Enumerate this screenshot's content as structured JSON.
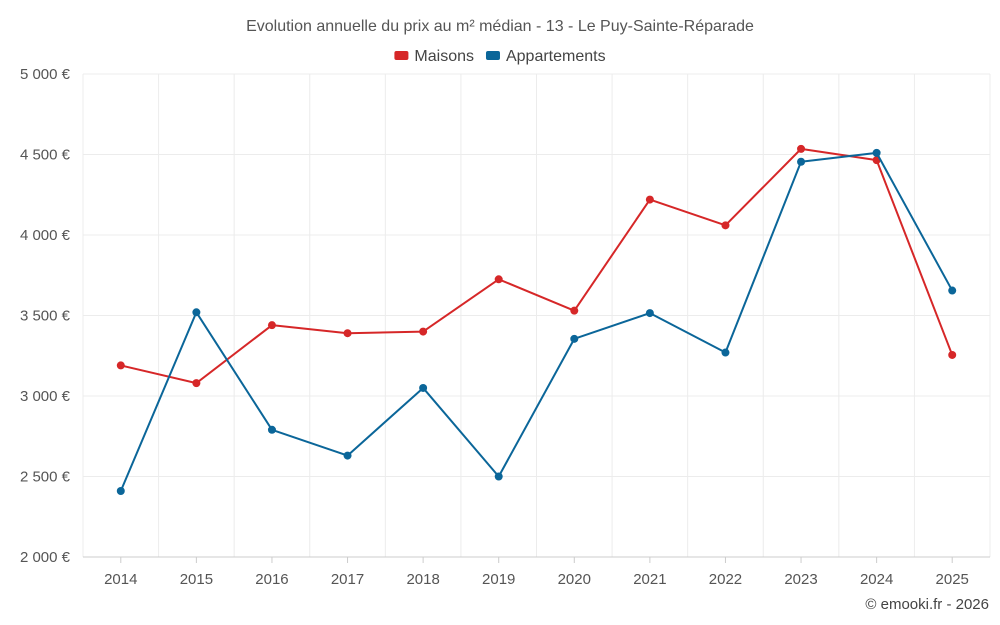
{
  "chart_data": {
    "type": "line",
    "title": "Evolution annuelle du prix au m² médian - 13 - Le Puy-Sainte-Réparade",
    "categories": [
      "2014",
      "2015",
      "2016",
      "2017",
      "2018",
      "2019",
      "2020",
      "2021",
      "2022",
      "2023",
      "2024",
      "2025"
    ],
    "series": [
      {
        "name": "Maisons",
        "color": "#d62728",
        "values": [
          3190,
          3080,
          3440,
          3390,
          3400,
          3725,
          3530,
          4220,
          4060,
          4535,
          4465,
          3255
        ]
      },
      {
        "name": "Appartements",
        "color": "#0b6699",
        "values": [
          2410,
          3520,
          2790,
          2630,
          3050,
          2500,
          3355,
          3515,
          3270,
          4455,
          4510,
          3655
        ]
      }
    ],
    "ylim": [
      2000,
      5000
    ],
    "yticks": [
      {
        "value": 2000,
        "label": "2 000 €"
      },
      {
        "value": 2500,
        "label": "2 500 €"
      },
      {
        "value": 3000,
        "label": "3 000 €"
      },
      {
        "value": 3500,
        "label": "3 500 €"
      },
      {
        "value": 4000,
        "label": "4 000 €"
      },
      {
        "value": 4500,
        "label": "4 500 €"
      },
      {
        "value": 5000,
        "label": "5 000 €"
      }
    ],
    "xlabel": "",
    "ylabel": "",
    "grid": true,
    "legend": "top-center"
  },
  "credit": "© emooki.fr - 2026"
}
